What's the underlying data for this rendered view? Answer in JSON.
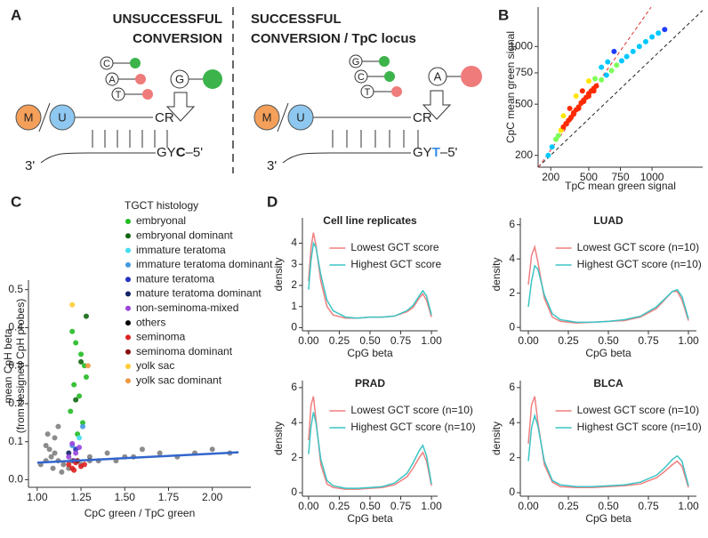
{
  "panel_labels": [
    "A",
    "B",
    "C",
    "D"
  ],
  "diagram": {
    "left": {
      "title": [
        "UNSUCCESSFUL",
        "CONVERSION"
      ],
      "probes": [
        "C",
        "A",
        "T"
      ],
      "nucleotide": "G",
      "methyl": "M",
      "unmethyl": "U",
      "cr": "CR",
      "three": "3'",
      "gy": "GY",
      "base": "C",
      "five": "–5'"
    },
    "right": {
      "title": [
        "SUCCESSFUL",
        "CONVERSION / TpC locus"
      ],
      "probes": [
        "G",
        "C",
        "T"
      ],
      "nucleotide": "A",
      "methyl": "M",
      "unmethyl": "U",
      "cr": "CR",
      "three": "3'",
      "gy": "GY",
      "base": "T",
      "five": "–5'"
    }
  },
  "chart_data": [
    {
      "type": "scatter",
      "xlabel": "TpC mean green signal",
      "ylabel": "CpC mean green signal",
      "xlim": [
        100,
        1400
      ],
      "ylim": [
        150,
        1440
      ],
      "y_scale": "sqrt",
      "xticks": [
        200,
        500,
        750,
        1000
      ],
      "yticks": [
        200,
        500,
        750,
        1000
      ],
      "color_scale": [
        "#1f3cff",
        "#00c8ff",
        "#7cff5a",
        "#ffe600",
        "#ff2a00"
      ],
      "x": [
        180,
        210,
        240,
        260,
        280,
        300,
        320,
        340,
        360,
        380,
        400,
        420,
        440,
        460,
        480,
        500,
        520,
        540,
        560,
        600,
        640,
        680,
        720,
        760,
        800,
        850,
        900,
        950,
        1000,
        1050,
        1100,
        300,
        350,
        400,
        450,
        500,
        550,
        600,
        650,
        700,
        380,
        420,
        460,
        500,
        540
      ],
      "values": [
        200,
        240,
        280,
        300,
        330,
        350,
        370,
        390,
        410,
        440,
        460,
        480,
        510,
        530,
        550,
        580,
        600,
        620,
        640,
        690,
        730,
        770,
        820,
        860,
        900,
        950,
        1000,
        1050,
        1100,
        1140,
        1180,
        420,
        470,
        560,
        600,
        680,
        700,
        800,
        850,
        950,
        430,
        470,
        520,
        560,
        600
      ]
    },
    {
      "type": "scatter",
      "xlabel": "CpC green / TpC green",
      "ylabel": [
        "mean CpH beta",
        "(from designed CpH probes)"
      ],
      "xlim": [
        0.95,
        2.22
      ],
      "ylim": [
        -0.02,
        0.525
      ],
      "xticks": [
        {
          "value": 1,
          "label": "1.00"
        },
        1.25,
        {
          "value": 1.5,
          "label": "1.50"
        },
        1.75,
        {
          "value": 2,
          "label": "2.00"
        }
      ],
      "yticks": [
        {
          "value": 0,
          "label": "0.0"
        },
        0.1,
        0.2,
        0.3,
        0.4,
        0.5
      ],
      "legend_title": "TGCT histology",
      "series": [
        {
          "name": "embryonal",
          "color": "#22bb22",
          "x": [
            1.2,
            1.22,
            1.25,
            1.27,
            1.21,
            1.24,
            1.19,
            1.26,
            1.23,
            1.28
          ],
          "values": [
            0.39,
            0.36,
            0.33,
            0.3,
            0.25,
            0.22,
            0.18,
            0.15,
            0.12,
            0.27
          ]
        },
        {
          "name": "embryonal dominant",
          "color": "#116611",
          "x": [
            1.25,
            1.22,
            1.28
          ],
          "values": [
            0.31,
            0.21,
            0.43
          ]
        },
        {
          "name": "immature teratoma",
          "color": "#44ddee",
          "x": [
            1.24
          ],
          "values": [
            0.11
          ]
        },
        {
          "name": "immature teratoma dominant",
          "color": "#4499dd",
          "x": [
            1.26,
            1.2
          ],
          "values": [
            0.14,
            0.09
          ]
        },
        {
          "name": "mature teratoma",
          "color": "#2233bb",
          "x": [
            1.22
          ],
          "values": [
            0.08
          ]
        },
        {
          "name": "mature teratoma dominant",
          "color": "#112266",
          "x": [
            1.18
          ],
          "values": [
            0.07
          ]
        },
        {
          "name": "non-seminoma-mixed",
          "color": "#9944dd",
          "x": [
            1.2,
            1.22,
            1.24,
            1.18,
            1.21
          ],
          "values": [
            0.095,
            0.07,
            0.085,
            0.06,
            0.05
          ]
        },
        {
          "name": "others",
          "color": "#000000",
          "x": [
            1.02,
            1.05,
            1.08,
            1.1,
            1.12,
            1.15,
            1.05,
            1.1,
            1.2,
            1.3,
            1.35,
            1.4,
            1.5,
            1.6,
            1.7,
            1.8,
            1.9,
            2.0,
            2.1,
            1.06,
            1.12,
            1.18,
            1.25,
            1.3,
            1.07,
            1.09,
            1.14,
            1.45,
            1.55
          ],
          "values": [
            0.04,
            0.05,
            0.06,
            0.07,
            0.05,
            0.04,
            0.09,
            0.11,
            0.05,
            0.06,
            0.05,
            0.07,
            0.06,
            0.08,
            0.07,
            0.06,
            0.07,
            0.08,
            0.07,
            0.12,
            0.14,
            0.03,
            0.04,
            0.05,
            0.08,
            0.03,
            0.02,
            0.05,
            0.06
          ]
        },
        {
          "name": "seminoma",
          "color": "#dd2222",
          "x": [
            1.18,
            1.2,
            1.22,
            1.25,
            1.27,
            1.21
          ],
          "values": [
            0.04,
            0.03,
            0.045,
            0.035,
            0.04,
            0.025
          ]
        },
        {
          "name": "seminoma dominant",
          "color": "#881111",
          "x": [
            1.23
          ],
          "values": [
            0.05
          ]
        },
        {
          "name": "yolk sac",
          "color": "#ffcc33",
          "x": [
            1.2
          ],
          "values": [
            0.46
          ]
        },
        {
          "name": "yolk sac dominant",
          "color": "#ee9944",
          "x": [
            1.29
          ],
          "values": [
            0.3
          ]
        }
      ],
      "fit_line": {
        "color": "#3366cc",
        "x": [
          1.0,
          2.15
        ],
        "values": [
          0.045,
          0.072
        ]
      }
    },
    {
      "type": "line",
      "title": "Cell line replicates",
      "xlabel": "CpG beta",
      "ylabel": "density",
      "xlim": [
        -0.05,
        1.05
      ],
      "ylim": [
        -0.15,
        5.2
      ],
      "xticks": [
        {
          "value": 0,
          "label": "0.00"
        },
        0.25,
        {
          "value": 0.5,
          "label": "0.50"
        },
        0.75,
        {
          "value": 1,
          "label": "1.00"
        }
      ],
      "yticks": [
        0,
        1,
        2,
        3,
        4
      ],
      "x": [
        0,
        0.02,
        0.04,
        0.06,
        0.1,
        0.15,
        0.2,
        0.3,
        0.4,
        0.5,
        0.6,
        0.7,
        0.8,
        0.85,
        0.9,
        0.93,
        0.96,
        1.0
      ],
      "series": [
        {
          "name": "Lowest GCT score",
          "color": "#f07f7f",
          "values": [
            2.2,
            3.8,
            4.5,
            3.9,
            2.2,
            1.0,
            0.6,
            0.45,
            0.45,
            0.5,
            0.5,
            0.55,
            0.75,
            0.95,
            1.4,
            1.6,
            1.3,
            0.5
          ]
        },
        {
          "name": "Highest GCT score",
          "color": "#3cc4c4",
          "values": [
            1.8,
            3.2,
            4.0,
            3.8,
            2.5,
            1.3,
            0.8,
            0.5,
            0.45,
            0.5,
            0.5,
            0.55,
            0.8,
            1.05,
            1.5,
            1.75,
            1.5,
            0.6
          ]
        }
      ]
    },
    {
      "type": "line",
      "title": "LUAD",
      "xlabel": "CpG beta",
      "ylabel": "density",
      "xlim": [
        -0.05,
        1.05
      ],
      "ylim": [
        -0.2,
        6.4
      ],
      "xticks": [
        {
          "value": 0,
          "label": "0.00"
        },
        0.25,
        {
          "value": 0.5,
          "label": "0.50"
        },
        0.75,
        {
          "value": 1,
          "label": "1.00"
        }
      ],
      "yticks": [
        0,
        2,
        4,
        6
      ],
      "x": [
        0,
        0.02,
        0.04,
        0.06,
        0.1,
        0.15,
        0.2,
        0.3,
        0.4,
        0.5,
        0.6,
        0.7,
        0.8,
        0.85,
        0.9,
        0.93,
        0.96,
        1.0
      ],
      "series": [
        {
          "name": "Lowest GCT score (n=10)",
          "color": "#f07f7f",
          "values": [
            2.5,
            4.2,
            4.7,
            3.8,
            1.7,
            0.6,
            0.35,
            0.25,
            0.3,
            0.35,
            0.4,
            0.6,
            1.1,
            1.6,
            2.1,
            2.1,
            1.6,
            0.4
          ]
        },
        {
          "name": "Highest GCT score (n=10)",
          "color": "#3cc4c4",
          "values": [
            1.2,
            2.7,
            3.6,
            3.4,
            1.9,
            0.8,
            0.45,
            0.3,
            0.3,
            0.35,
            0.45,
            0.65,
            1.2,
            1.65,
            2.1,
            2.2,
            1.8,
            0.5
          ]
        }
      ]
    },
    {
      "type": "line",
      "title": "PRAD",
      "xlabel": "CpG beta",
      "ylabel": "density",
      "xlim": [
        -0.05,
        1.05
      ],
      "ylim": [
        -0.2,
        6.4
      ],
      "xticks": [
        {
          "value": 0,
          "label": "0.00"
        },
        0.25,
        {
          "value": 0.5,
          "label": "0.50"
        },
        0.75,
        {
          "value": 1,
          "label": "1.00"
        }
      ],
      "yticks": [
        0,
        2,
        4,
        6
      ],
      "x": [
        0,
        0.02,
        0.04,
        0.06,
        0.1,
        0.15,
        0.2,
        0.3,
        0.4,
        0.5,
        0.6,
        0.7,
        0.8,
        0.85,
        0.9,
        0.93,
        0.96,
        1.0
      ],
      "series": [
        {
          "name": "Lowest GCT score (n=10)",
          "color": "#f07f7f",
          "values": [
            3.0,
            5.0,
            5.5,
            4.2,
            1.6,
            0.5,
            0.3,
            0.2,
            0.2,
            0.25,
            0.3,
            0.45,
            0.9,
            1.4,
            2.0,
            2.3,
            1.8,
            0.4
          ]
        },
        {
          "name": "Highest GCT score (n=10)",
          "color": "#3cc4c4",
          "values": [
            2.2,
            3.8,
            4.6,
            4.0,
            1.9,
            0.7,
            0.4,
            0.25,
            0.25,
            0.3,
            0.35,
            0.55,
            1.1,
            1.7,
            2.4,
            2.7,
            2.1,
            0.5
          ]
        }
      ]
    },
    {
      "type": "line",
      "title": "BLCA",
      "xlabel": "CpG beta",
      "ylabel": "density",
      "xlim": [
        -0.05,
        1.05
      ],
      "ylim": [
        -0.2,
        6.4
      ],
      "xticks": [
        {
          "value": 0,
          "label": "0.00"
        },
        0.25,
        {
          "value": 0.5,
          "label": "0.50"
        },
        0.75,
        {
          "value": 1,
          "label": "1.00"
        }
      ],
      "yticks": [
        0,
        2,
        4,
        6
      ],
      "x": [
        0,
        0.02,
        0.04,
        0.06,
        0.1,
        0.15,
        0.2,
        0.3,
        0.4,
        0.5,
        0.6,
        0.7,
        0.8,
        0.85,
        0.9,
        0.93,
        0.96,
        1.0
      ],
      "series": [
        {
          "name": "Lowest GCT score (n=10)",
          "color": "#f07f7f",
          "values": [
            2.8,
            5.0,
            5.5,
            4.0,
            1.6,
            0.6,
            0.35,
            0.3,
            0.3,
            0.35,
            0.4,
            0.5,
            0.85,
            1.2,
            1.6,
            1.8,
            1.5,
            0.3
          ]
        },
        {
          "name": "Highest GCT score (n=10)",
          "color": "#3cc4c4",
          "values": [
            1.8,
            3.7,
            4.4,
            3.8,
            1.8,
            0.7,
            0.45,
            0.35,
            0.35,
            0.4,
            0.45,
            0.6,
            1.0,
            1.4,
            1.9,
            2.1,
            1.8,
            0.4
          ]
        }
      ]
    }
  ]
}
